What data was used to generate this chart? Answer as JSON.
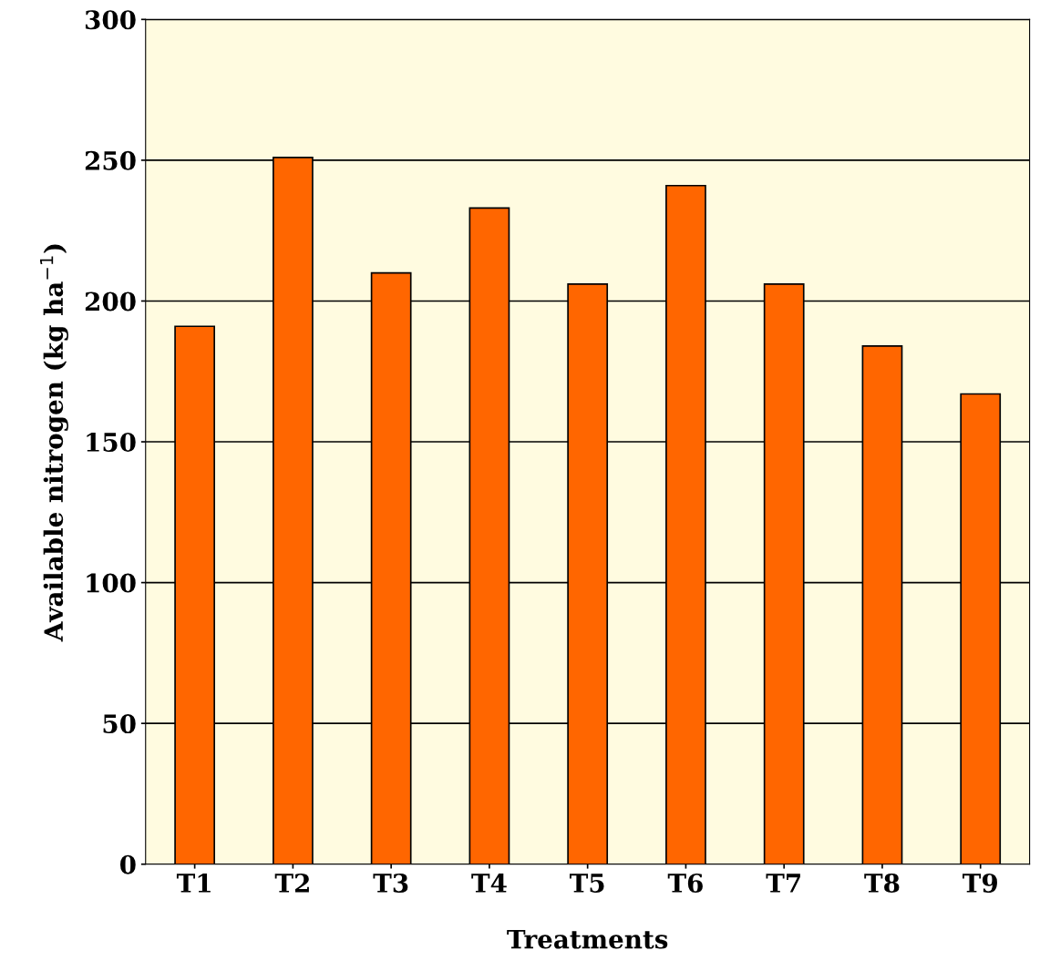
{
  "chart_data": {
    "type": "bar",
    "xlabel": "Treatments",
    "ylabel": "Available nitrogen (kg ha$^{−1}$)",
    "categories": [
      "T1",
      "T2",
      "T3",
      "T4",
      "T5",
      "T6",
      "T7",
      "T8",
      "T9"
    ],
    "values": [
      191,
      251,
      210,
      233,
      206,
      241,
      206,
      184,
      167
    ],
    "color": "#ff6600",
    "ylim": [
      0,
      300
    ],
    "yticks": [
      0,
      50,
      100,
      150,
      200,
      250,
      300
    ],
    "grid": "y",
    "legend": false
  }
}
